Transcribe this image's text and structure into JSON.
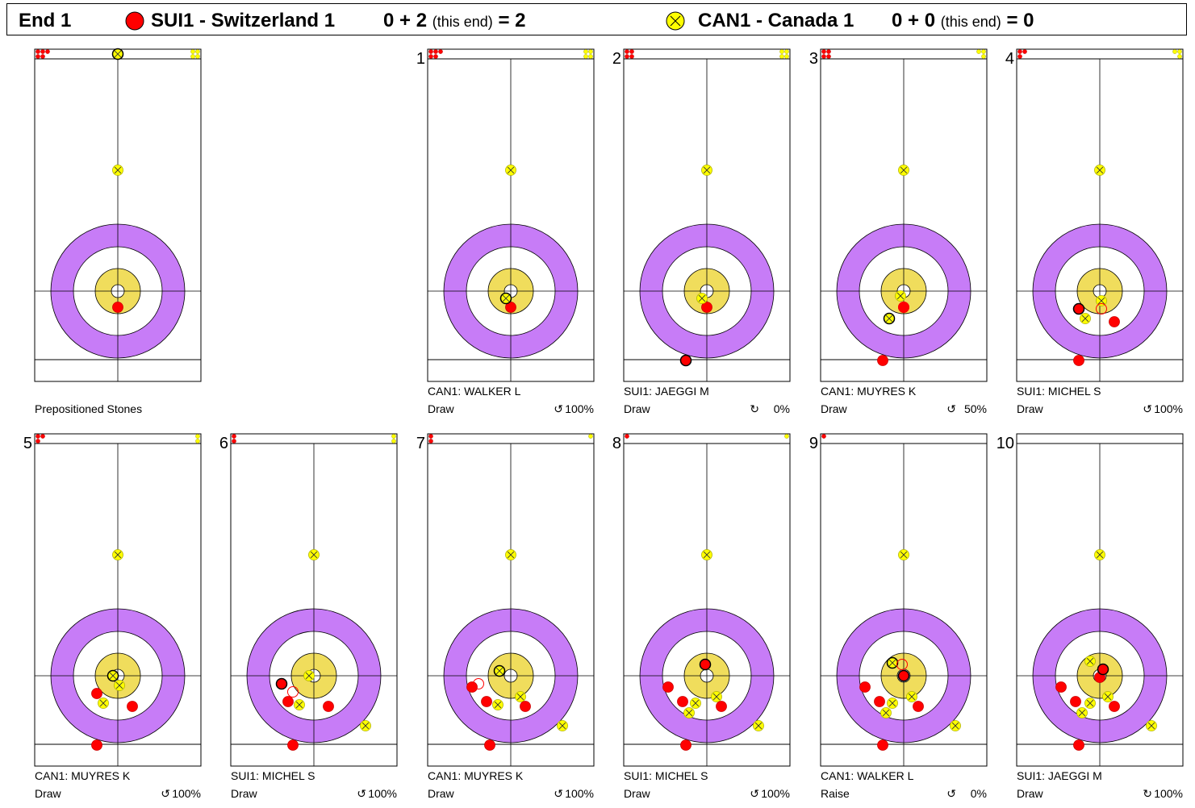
{
  "header": {
    "end_label": "End 1",
    "team1": {
      "name": "SUI1 - Switzerland 1",
      "score_expr": "0 + 2",
      "this_end": "(this end)",
      "total": "= 2",
      "color": "#ff0000"
    },
    "team2": {
      "name": "CAN1 - Canada 1",
      "score_expr": "0 + 0",
      "this_end": "(this end)",
      "total": "= 0",
      "color": "#ffff00"
    }
  },
  "colors": {
    "outer_ring": "#c77cf7",
    "four_foot": "#ffffff",
    "button_ring": "#f0dd5c",
    "red_stone": "#ff0000",
    "yellow_stone": "#ffff00"
  },
  "panels": [
    {
      "number": "",
      "caption": "Prepositioned Stones",
      "shot_type": "",
      "rotation": "",
      "percent": "",
      "remaining": {
        "red": 5,
        "yellow": 4
      },
      "stones": [
        {
          "team": "yellow",
          "x": 0,
          "y": -150,
          "moved": false
        },
        {
          "team": "red",
          "x": 0,
          "y": 20,
          "moved": false
        },
        {
          "team": "yellow",
          "x": 0,
          "y": -296,
          "moved": true
        }
      ]
    },
    {
      "number": "1",
      "caption": "CAN1: WALKER L",
      "shot_type": "Draw",
      "rotation": "↺",
      "percent": "100%",
      "remaining": {
        "red": 5,
        "yellow": 4
      },
      "stones": [
        {
          "team": "yellow",
          "x": 0,
          "y": -150,
          "moved": false
        },
        {
          "team": "red",
          "x": 0,
          "y": 20,
          "moved": false
        },
        {
          "team": "yellow",
          "x": -6,
          "y": 9,
          "moved": true
        }
      ]
    },
    {
      "number": "2",
      "caption": "SUI1: JAEGGI M",
      "shot_type": "Draw",
      "rotation": "↻",
      "percent": "0%",
      "remaining": {
        "red": 4,
        "yellow": 4
      },
      "stones": [
        {
          "team": "yellow",
          "x": 0,
          "y": -150,
          "moved": false
        },
        {
          "team": "red",
          "x": 0,
          "y": 20,
          "moved": false
        },
        {
          "team": "yellow",
          "x": -6,
          "y": 9,
          "moved": false
        },
        {
          "team": "red",
          "x": -26,
          "y": 86,
          "moved": true
        }
      ]
    },
    {
      "number": "3",
      "caption": "CAN1: MUYRES K",
      "shot_type": "Draw",
      "rotation": "↺",
      "percent": "50%",
      "remaining": {
        "red": 4,
        "yellow": 3
      },
      "stones": [
        {
          "team": "yellow",
          "x": 0,
          "y": -150,
          "moved": false
        },
        {
          "team": "yellow",
          "x": -4,
          "y": 6,
          "moved": false
        },
        {
          "team": "red",
          "x": 0,
          "y": 20,
          "moved": false
        },
        {
          "team": "red",
          "x": -26,
          "y": 86,
          "moved": false
        },
        {
          "team": "yellow",
          "x": -18,
          "y": 34,
          "moved": true
        },
        {
          "team": "red",
          "x": 0,
          "y": 20,
          "ghost": true
        }
      ]
    },
    {
      "number": "4",
      "caption": "SUI1: MICHEL S",
      "shot_type": "Draw",
      "rotation": "↺",
      "percent": "100%",
      "remaining": {
        "red": 3,
        "yellow": 3
      },
      "stones": [
        {
          "team": "yellow",
          "x": 0,
          "y": -150,
          "moved": false
        },
        {
          "team": "yellow",
          "x": 2,
          "y": 12,
          "moved": false
        },
        {
          "team": "red",
          "x": 18,
          "y": 38,
          "moved": false
        },
        {
          "team": "yellow",
          "x": -18,
          "y": 34,
          "moved": false
        },
        {
          "team": "red",
          "x": -26,
          "y": 86,
          "moved": false
        },
        {
          "team": "red",
          "x": -26,
          "y": 22,
          "moved": true
        },
        {
          "team": "red",
          "x": 2,
          "y": 22,
          "ghost": true
        }
      ]
    },
    {
      "number": "5",
      "caption": "CAN1: MUYRES K",
      "shot_type": "Draw",
      "rotation": "↺",
      "percent": "100%",
      "remaining": {
        "red": 3,
        "yellow": 2
      },
      "stones": [
        {
          "team": "yellow",
          "x": 0,
          "y": -150,
          "moved": false
        },
        {
          "team": "yellow",
          "x": 2,
          "y": 12,
          "moved": false
        },
        {
          "team": "red",
          "x": -26,
          "y": 22,
          "moved": false
        },
        {
          "team": "yellow",
          "x": -18,
          "y": 34,
          "moved": false
        },
        {
          "team": "red",
          "x": 18,
          "y": 38,
          "moved": false
        },
        {
          "team": "red",
          "x": -26,
          "y": 86,
          "moved": false
        },
        {
          "team": "yellow",
          "x": -6,
          "y": 0,
          "moved": true
        }
      ]
    },
    {
      "number": "6",
      "caption": "SUI1: MICHEL S",
      "shot_type": "Draw",
      "rotation": "↺",
      "percent": "100%",
      "remaining": {
        "red": 2,
        "yellow": 2
      },
      "stones": [
        {
          "team": "yellow",
          "x": 0,
          "y": -150,
          "moved": false
        },
        {
          "team": "yellow",
          "x": -6,
          "y": 0,
          "moved": false
        },
        {
          "team": "red",
          "x": -32,
          "y": 32,
          "moved": false
        },
        {
          "team": "yellow",
          "x": -18,
          "y": 36,
          "moved": false
        },
        {
          "team": "red",
          "x": 18,
          "y": 38,
          "moved": false
        },
        {
          "team": "yellow",
          "x": 64,
          "y": 62,
          "moved": false
        },
        {
          "team": "red",
          "x": -26,
          "y": 86,
          "moved": false
        },
        {
          "team": "red",
          "x": -40,
          "y": 10,
          "moved": true
        },
        {
          "team": "red",
          "x": -26,
          "y": 20,
          "ghost": true
        }
      ]
    },
    {
      "number": "7",
      "caption": "CAN1: MUYRES K",
      "shot_type": "Draw",
      "rotation": "↺",
      "percent": "100%",
      "remaining": {
        "red": 2,
        "yellow": 1
      },
      "stones": [
        {
          "team": "yellow",
          "x": 0,
          "y": -150,
          "moved": false
        },
        {
          "team": "red",
          "x": -48,
          "y": 14,
          "moved": false
        },
        {
          "team": "red",
          "x": -30,
          "y": 32,
          "moved": false
        },
        {
          "team": "yellow",
          "x": -16,
          "y": 36,
          "moved": false
        },
        {
          "team": "yellow",
          "x": 12,
          "y": 26,
          "moved": false
        },
        {
          "team": "red",
          "x": 18,
          "y": 38,
          "moved": false
        },
        {
          "team": "yellow",
          "x": 64,
          "y": 62,
          "moved": false
        },
        {
          "team": "red",
          "x": -26,
          "y": 86,
          "moved": false
        },
        {
          "team": "yellow",
          "x": -14,
          "y": -6,
          "moved": true
        },
        {
          "team": "red",
          "x": -40,
          "y": 10,
          "ghost": true
        }
      ]
    },
    {
      "number": "8",
      "caption": "SUI1: MICHEL S",
      "shot_type": "Draw",
      "rotation": "↺",
      "percent": "100%",
      "remaining": {
        "red": 1,
        "yellow": 1
      },
      "stones": [
        {
          "team": "yellow",
          "x": 0,
          "y": -150,
          "moved": false
        },
        {
          "team": "red",
          "x": -48,
          "y": 14,
          "moved": false
        },
        {
          "team": "red",
          "x": -30,
          "y": 32,
          "moved": false
        },
        {
          "team": "yellow",
          "x": -14,
          "y": 34,
          "moved": false
        },
        {
          "team": "yellow",
          "x": -22,
          "y": 46,
          "moved": false
        },
        {
          "team": "yellow",
          "x": 12,
          "y": 26,
          "moved": false
        },
        {
          "team": "red",
          "x": 18,
          "y": 38,
          "moved": false
        },
        {
          "team": "yellow",
          "x": 64,
          "y": 62,
          "moved": false
        },
        {
          "team": "red",
          "x": -26,
          "y": 86,
          "moved": false
        },
        {
          "team": "red",
          "x": -2,
          "y": -14,
          "moved": true
        }
      ]
    },
    {
      "number": "9",
      "caption": "CAN1: WALKER L",
      "shot_type": "Raise",
      "rotation": "↺",
      "percent": "0%",
      "remaining": {
        "red": 1,
        "yellow": 0
      },
      "stones": [
        {
          "team": "yellow",
          "x": 0,
          "y": -150,
          "moved": false
        },
        {
          "team": "red",
          "x": -48,
          "y": 14,
          "moved": false
        },
        {
          "team": "red",
          "x": -30,
          "y": 32,
          "moved": false
        },
        {
          "team": "yellow",
          "x": -14,
          "y": 34,
          "moved": false
        },
        {
          "team": "yellow",
          "x": -22,
          "y": 46,
          "moved": false
        },
        {
          "team": "yellow",
          "x": 10,
          "y": 26,
          "moved": false
        },
        {
          "team": "red",
          "x": 18,
          "y": 38,
          "moved": false
        },
        {
          "team": "yellow",
          "x": 64,
          "y": 62,
          "moved": false
        },
        {
          "team": "red",
          "x": -26,
          "y": 86,
          "moved": false
        },
        {
          "team": "yellow",
          "x": -14,
          "y": -16,
          "moved": true
        },
        {
          "team": "red",
          "x": 0,
          "y": 0,
          "moved": true
        },
        {
          "team": "red",
          "x": -2,
          "y": -14,
          "ghost": true
        }
      ]
    },
    {
      "number": "10",
      "caption": "SUI1: JAEGGI M",
      "shot_type": "Draw",
      "rotation": "↻",
      "percent": "100%",
      "remaining": {
        "red": 0,
        "yellow": 0
      },
      "stones": [
        {
          "team": "yellow",
          "x": 0,
          "y": -150,
          "moved": false
        },
        {
          "team": "yellow",
          "x": -12,
          "y": -18,
          "moved": false
        },
        {
          "team": "red",
          "x": 0,
          "y": 2,
          "moved": false
        },
        {
          "team": "red",
          "x": -48,
          "y": 14,
          "moved": false
        },
        {
          "team": "red",
          "x": -30,
          "y": 32,
          "moved": false
        },
        {
          "team": "yellow",
          "x": -12,
          "y": 34,
          "moved": false
        },
        {
          "team": "yellow",
          "x": -22,
          "y": 46,
          "moved": false
        },
        {
          "team": "yellow",
          "x": 10,
          "y": 26,
          "moved": false
        },
        {
          "team": "red",
          "x": 18,
          "y": 38,
          "moved": false
        },
        {
          "team": "yellow",
          "x": 64,
          "y": 62,
          "moved": false
        },
        {
          "team": "red",
          "x": -26,
          "y": 86,
          "moved": false
        },
        {
          "team": "red",
          "x": 4,
          "y": -8,
          "moved": true
        }
      ]
    }
  ]
}
